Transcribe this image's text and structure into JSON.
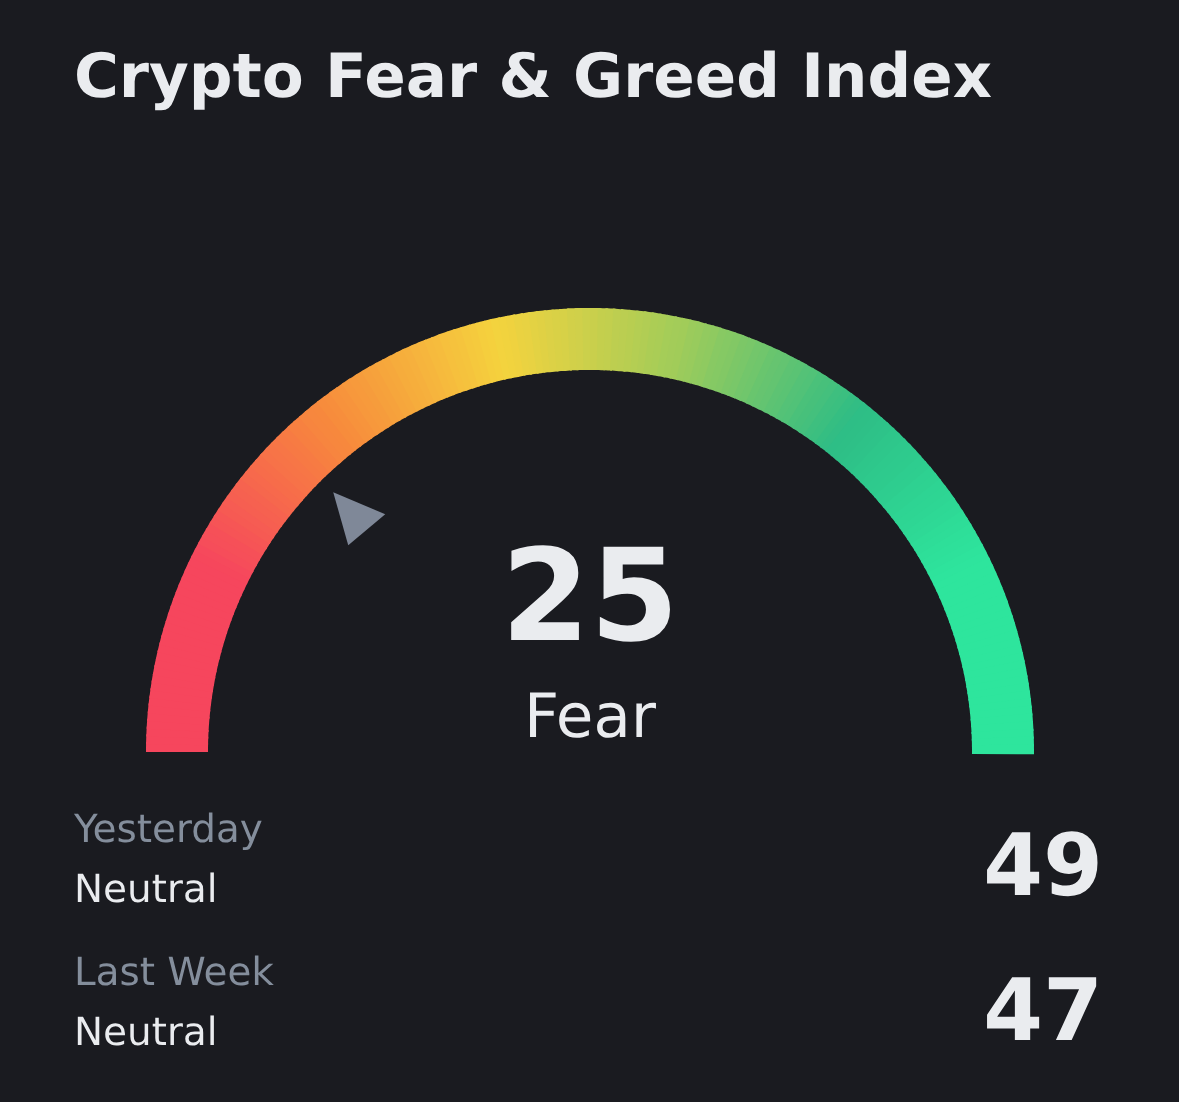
{
  "chart_data": {
    "type": "other",
    "title": "Crypto Fear & Greed Index",
    "values": [
      25
    ],
    "data_labels": true,
    "annotations": [
      "Fear",
      "Yesterday",
      "Neutral",
      "49",
      "Last Week",
      "Neutral",
      "47"
    ]
  }
}
